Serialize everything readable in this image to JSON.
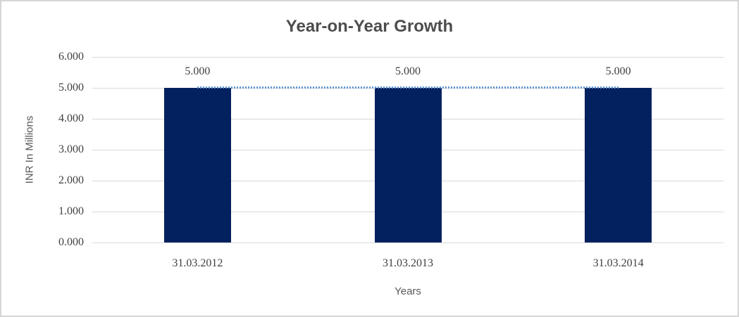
{
  "chart_data": {
    "type": "bar",
    "title": "Year-on-Year Growth",
    "xlabel": "Years",
    "ylabel": "INR In Millions",
    "categories": [
      "31.03.2012",
      "31.03.2013",
      "31.03.2014"
    ],
    "values": [
      5.0,
      5.0,
      5.0
    ],
    "data_labels": [
      "5.000",
      "5.000",
      "5.000"
    ],
    "ytick_labels": [
      "0.000",
      "1.000",
      "2.000",
      "3.000",
      "4.000",
      "5.000",
      "6.000"
    ],
    "ylim": [
      0,
      6
    ],
    "grid": "horizontal",
    "legend": "none",
    "trendline": {
      "style": "dotted",
      "value": 5.0
    },
    "colors": {
      "bar": "#02215e",
      "gridline": "#d9d9d9",
      "title_text": "#4d4d4d",
      "tick_text": "#3f3f3f",
      "axis_title_text": "#595959",
      "trendline": "#5e96ce",
      "border": "#d6d6d6"
    }
  }
}
